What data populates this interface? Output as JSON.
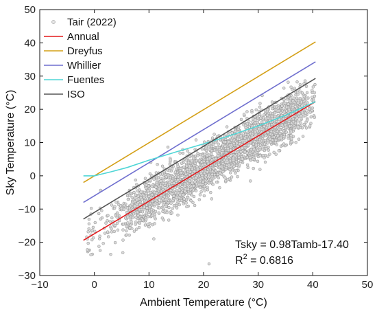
{
  "chart_data": {
    "type": "scatter",
    "xlabel": "Ambient Temperature (°C)",
    "ylabel": "Sky Temperature (°C)",
    "xlim": [
      -10,
      50
    ],
    "ylim": [
      -30,
      50
    ],
    "xticks": [
      -10,
      0,
      10,
      20,
      30,
      40,
      50
    ],
    "yticks": [
      -30,
      -20,
      -10,
      0,
      10,
      20,
      30,
      40,
      50
    ],
    "grid": false,
    "legend_position": "top-left",
    "scatter": {
      "name": "Tair (2022)",
      "color": "#9a9a9a",
      "x_range": [
        -2,
        41
      ],
      "fit_slope": 0.98,
      "fit_intercept": -17.4,
      "notable_points": [
        {
          "x": 21,
          "y": -26.5
        },
        {
          "x": 39,
          "y": 22
        }
      ]
    },
    "series": [
      {
        "name": "Annual",
        "color": "#e41a1c",
        "x": [
          -2,
          40.5
        ],
        "y": [
          -19.4,
          22.3
        ]
      },
      {
        "name": "Dreyfus",
        "color": "#d4a017",
        "x": [
          -2,
          40.5
        ],
        "y": [
          -2.0,
          40.3
        ]
      },
      {
        "name": "Whillier",
        "color": "#6f6fcf",
        "x": [
          -2,
          40.5
        ],
        "y": [
          -8.0,
          34.3
        ]
      },
      {
        "name": "Fuentes",
        "color": "#4fd6d6",
        "x": [
          -2,
          0,
          3,
          6,
          10,
          15,
          20,
          25,
          30,
          35,
          40.5
        ],
        "y": [
          0.0,
          0.0,
          1.2,
          2.5,
          4.7,
          7.2,
          9.6,
          12.2,
          15.0,
          18.2,
          22.3
        ]
      },
      {
        "name": "ISO",
        "color": "#555555",
        "x": [
          -2,
          40.5
        ],
        "y": [
          -13.0,
          29.3
        ]
      }
    ],
    "annotations": {
      "equation": "Tsky = 0.98Tamb-17.40",
      "r2_prefix": "R",
      "r2_sup": "2",
      "r2_value": " = 0.6816"
    }
  }
}
